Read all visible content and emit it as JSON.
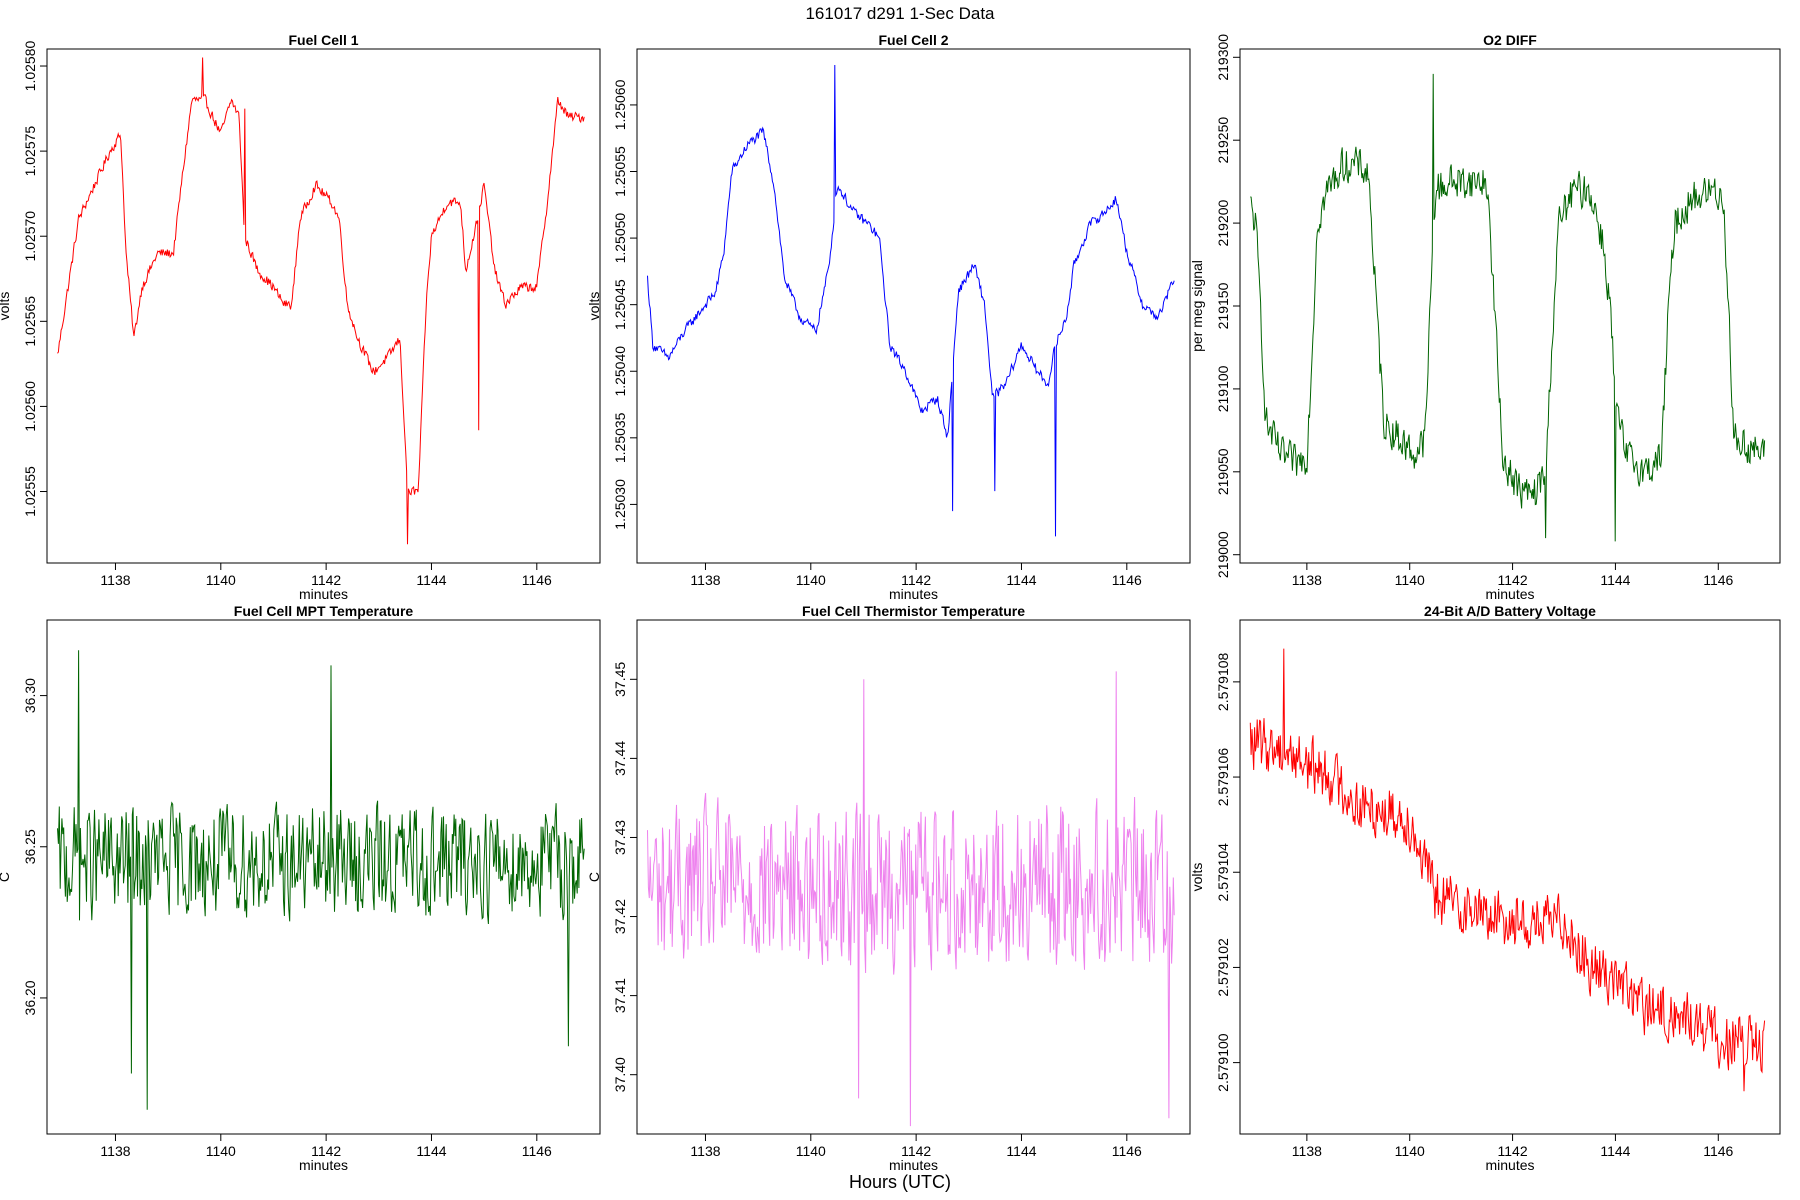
{
  "figure": {
    "title": "161017   d291   1-Sec Data",
    "xlabel_outer": "Hours (UTC)"
  },
  "chart_data": [
    {
      "type": "line",
      "title": "Fuel Cell 1",
      "xlabel": "minutes",
      "ylabel": "volts",
      "color": "#ff0000",
      "xlim": [
        1136.7,
        1147.2
      ],
      "ylim": [
        1.025508,
        1.02581
      ],
      "xticks": [
        1138,
        1140,
        1142,
        1144,
        1146
      ],
      "xtick_labels": [
        "1138",
        "1140",
        "1142",
        "1144",
        "1146"
      ],
      "yticks": [
        1.02555,
        1.0256,
        1.02565,
        1.0257,
        1.02575,
        1.0258
      ],
      "ytick_labels": [
        "1.02555",
        "1.02560",
        "1.02565",
        "1.02570",
        "1.02575",
        "1.02580"
      ],
      "x_range": [
        1136.9,
        1146.9
      ],
      "waypoints": [
        [
          1136.9,
          1.02563
        ],
        [
          1137.1,
          1.02567
        ],
        [
          1137.3,
          1.02571
        ],
        [
          1137.6,
          1.02573
        ],
        [
          1137.9,
          1.02575
        ],
        [
          1138.1,
          1.02576
        ],
        [
          1138.2,
          1.02569
        ],
        [
          1138.35,
          1.02564
        ],
        [
          1138.5,
          1.02567
        ],
        [
          1138.8,
          1.02569
        ],
        [
          1139.1,
          1.02569
        ],
        [
          1139.25,
          1.02573
        ],
        [
          1139.45,
          1.02578
        ],
        [
          1139.7,
          1.02578
        ],
        [
          1140.0,
          1.02576
        ],
        [
          1140.2,
          1.02578
        ],
        [
          1140.35,
          1.02577
        ],
        [
          1140.45,
          1.0257
        ],
        [
          1140.7,
          1.02568
        ],
        [
          1141.0,
          1.02567
        ],
        [
          1141.2,
          1.02566
        ],
        [
          1141.35,
          1.02566
        ],
        [
          1141.5,
          1.02571
        ],
        [
          1141.8,
          1.02573
        ],
        [
          1142.1,
          1.02572
        ],
        [
          1142.25,
          1.02571
        ],
        [
          1142.4,
          1.02566
        ],
        [
          1142.6,
          1.02564
        ],
        [
          1142.9,
          1.02562
        ],
        [
          1143.2,
          1.02563
        ],
        [
          1143.4,
          1.02564
        ],
        [
          1143.55,
          1.02555
        ],
        [
          1143.75,
          1.02555
        ],
        [
          1143.9,
          1.02566
        ],
        [
          1144.0,
          1.0257
        ],
        [
          1144.3,
          1.02572
        ],
        [
          1144.55,
          1.02572
        ],
        [
          1144.65,
          1.02568
        ],
        [
          1144.8,
          1.0257
        ],
        [
          1145.0,
          1.02573
        ],
        [
          1145.2,
          1.02568
        ],
        [
          1145.4,
          1.02566
        ],
        [
          1145.7,
          1.02567
        ],
        [
          1146.0,
          1.02567
        ],
        [
          1146.2,
          1.02572
        ],
        [
          1146.4,
          1.02578
        ],
        [
          1146.6,
          1.02577
        ],
        [
          1146.9,
          1.02577
        ]
      ],
      "noise": 2.8e-06,
      "extremes": [
        [
          1139.65,
          1.025805
        ],
        [
          1143.55,
          1.025519
        ],
        [
          1140.45,
          1.025775
        ],
        [
          1144.9,
          1.025586
        ]
      ]
    },
    {
      "type": "line",
      "title": "Fuel Cell 2",
      "xlabel": "minutes",
      "ylabel": "volts",
      "color": "#0000ff",
      "xlim": [
        1136.7,
        1147.2
      ],
      "ylim": [
        1.250256,
        1.250642
      ],
      "xticks": [
        1138,
        1140,
        1142,
        1144,
        1146
      ],
      "xtick_labels": [
        "1138",
        "1140",
        "1142",
        "1144",
        "1146"
      ],
      "yticks": [
        1.2503,
        1.25035,
        1.2504,
        1.25045,
        1.2505,
        1.25055,
        1.2506
      ],
      "ytick_labels": [
        "1.25030",
        "1.25035",
        "1.25040",
        "1.25045",
        "1.25050",
        "1.25055",
        "1.25060"
      ],
      "x_range": [
        1136.9,
        1146.9
      ],
      "waypoints": [
        [
          1136.9,
          1.25047
        ],
        [
          1137.0,
          1.25042
        ],
        [
          1137.3,
          1.25041
        ],
        [
          1137.6,
          1.25043
        ],
        [
          1138.0,
          1.25045
        ],
        [
          1138.2,
          1.25046
        ],
        [
          1138.35,
          1.25049
        ],
        [
          1138.5,
          1.25055
        ],
        [
          1138.8,
          1.25057
        ],
        [
          1139.1,
          1.25058
        ],
        [
          1139.3,
          1.25054
        ],
        [
          1139.5,
          1.25047
        ],
        [
          1139.8,
          1.25044
        ],
        [
          1140.1,
          1.25043
        ],
        [
          1140.35,
          1.25048
        ],
        [
          1140.5,
          1.25054
        ],
        [
          1140.8,
          1.25052
        ],
        [
          1141.1,
          1.25051
        ],
        [
          1141.3,
          1.2505
        ],
        [
          1141.5,
          1.25042
        ],
        [
          1141.8,
          1.2504
        ],
        [
          1142.1,
          1.25037
        ],
        [
          1142.4,
          1.25038
        ],
        [
          1142.6,
          1.25035
        ],
        [
          1142.8,
          1.25046
        ],
        [
          1143.1,
          1.25048
        ],
        [
          1143.3,
          1.25045
        ],
        [
          1143.45,
          1.25038
        ],
        [
          1143.7,
          1.25039
        ],
        [
          1144.0,
          1.25042
        ],
        [
          1144.3,
          1.2504
        ],
        [
          1144.5,
          1.25039
        ],
        [
          1144.65,
          1.25042
        ],
        [
          1144.85,
          1.25044
        ],
        [
          1145.0,
          1.25048
        ],
        [
          1145.3,
          1.25051
        ],
        [
          1145.6,
          1.25052
        ],
        [
          1145.8,
          1.25053
        ],
        [
          1146.0,
          1.25049
        ],
        [
          1146.3,
          1.25045
        ],
        [
          1146.6,
          1.25044
        ],
        [
          1146.9,
          1.25047
        ]
      ],
      "noise": 3.5e-06,
      "extremes": [
        [
          1140.45,
          1.25063
        ],
        [
          1144.65,
          1.250276
        ],
        [
          1142.7,
          1.250295
        ],
        [
          1143.5,
          1.25031
        ]
      ]
    },
    {
      "type": "line",
      "title": "O2 DIFF",
      "xlabel": "minutes",
      "ylabel": "per meg signal",
      "color": "#006400",
      "xlim": [
        1136.7,
        1147.2
      ],
      "ylim": [
        218995,
        219305
      ],
      "xticks": [
        1138,
        1140,
        1142,
        1144,
        1146
      ],
      "xtick_labels": [
        "1138",
        "1140",
        "1142",
        "1144",
        "1146"
      ],
      "yticks": [
        219000,
        219050,
        219100,
        219150,
        219200,
        219250,
        219300
      ],
      "ytick_labels": [
        "219000",
        "219050",
        "219100",
        "219150",
        "219200",
        "219250",
        "219300"
      ],
      "x_range": [
        1136.9,
        1146.9
      ],
      "waypoints": [
        [
          1136.9,
          219210
        ],
        [
          1137.0,
          219200
        ],
        [
          1137.1,
          219150
        ],
        [
          1137.2,
          219080
        ],
        [
          1137.5,
          219060
        ],
        [
          1137.8,
          219055
        ],
        [
          1138.0,
          219060
        ],
        [
          1138.1,
          219120
        ],
        [
          1138.2,
          219200
        ],
        [
          1138.4,
          219220
        ],
        [
          1138.7,
          219235
        ],
        [
          1139.0,
          219235
        ],
        [
          1139.2,
          219230
        ],
        [
          1139.35,
          219150
        ],
        [
          1139.5,
          219080
        ],
        [
          1139.8,
          219070
        ],
        [
          1140.1,
          219060
        ],
        [
          1140.3,
          219070
        ],
        [
          1140.4,
          219150
        ],
        [
          1140.5,
          219220
        ],
        [
          1140.8,
          219225
        ],
        [
          1141.2,
          219225
        ],
        [
          1141.5,
          219225
        ],
        [
          1141.65,
          219150
        ],
        [
          1141.8,
          219060
        ],
        [
          1142.1,
          219040
        ],
        [
          1142.4,
          219035
        ],
        [
          1142.65,
          219050
        ],
        [
          1142.75,
          219120
        ],
        [
          1142.9,
          219200
        ],
        [
          1143.2,
          219220
        ],
        [
          1143.5,
          219220
        ],
        [
          1143.75,
          219190
        ],
        [
          1143.9,
          219150
        ],
        [
          1144.0,
          219090
        ],
        [
          1144.2,
          219060
        ],
        [
          1144.6,
          219050
        ],
        [
          1144.9,
          219060
        ],
        [
          1145.0,
          219130
        ],
        [
          1145.15,
          219200
        ],
        [
          1145.5,
          219215
        ],
        [
          1145.9,
          219220
        ],
        [
          1146.1,
          219215
        ],
        [
          1146.2,
          219150
        ],
        [
          1146.3,
          219070
        ],
        [
          1146.6,
          219065
        ],
        [
          1146.9,
          219060
        ]
      ],
      "noise": 10,
      "extremes": [
        [
          1140.45,
          219290
        ],
        [
          1144.0,
          219008
        ],
        [
          1142.65,
          219010
        ]
      ]
    },
    {
      "type": "line",
      "title": "Fuel Cell MPT Temperature",
      "xlabel": "minutes",
      "ylabel": "C",
      "color": "#006400",
      "xlim": [
        1136.7,
        1147.2
      ],
      "ylim": [
        36.155,
        36.325
      ],
      "xticks": [
        1138,
        1140,
        1142,
        1144,
        1146
      ],
      "xtick_labels": [
        "1138",
        "1140",
        "1142",
        "1144",
        "1146"
      ],
      "yticks": [
        36.2,
        36.25,
        36.3
      ],
      "ytick_labels": [
        "36.20",
        "36.25",
        "36.30"
      ],
      "x_range": [
        1136.9,
        1146.9
      ],
      "waypoints": [
        [
          1136.9,
          36.245
        ],
        [
          1146.9,
          36.245
        ]
      ],
      "noise": 0.017,
      "extremes": [
        [
          1137.3,
          36.315
        ],
        [
          1138.6,
          36.163
        ],
        [
          1142.1,
          36.31
        ],
        [
          1146.6,
          36.184
        ],
        [
          1138.3,
          36.175
        ]
      ]
    },
    {
      "type": "line",
      "title": "Fuel Cell Thermistor Temperature",
      "xlabel": "minutes",
      "ylabel": "C",
      "color": "#ee82ee",
      "xlim": [
        1136.7,
        1147.2
      ],
      "ylim": [
        37.3925,
        37.4575
      ],
      "xticks": [
        1138,
        1140,
        1142,
        1144,
        1146
      ],
      "xtick_labels": [
        "1138",
        "1140",
        "1142",
        "1144",
        "1146"
      ],
      "yticks": [
        37.4,
        37.41,
        37.42,
        37.43,
        37.44,
        37.45
      ],
      "ytick_labels": [
        "37.40",
        "37.41",
        "37.42",
        "37.43",
        "37.44",
        "37.45"
      ],
      "x_range": [
        1136.9,
        1146.9
      ],
      "waypoints": [
        [
          1136.9,
          37.424
        ],
        [
          1146.9,
          37.424
        ]
      ],
      "noise": 0.0095,
      "extremes": [
        [
          1141.0,
          37.45
        ],
        [
          1145.8,
          37.451
        ],
        [
          1141.9,
          37.3935
        ],
        [
          1146.8,
          37.3945
        ],
        [
          1140.9,
          37.397
        ]
      ]
    },
    {
      "type": "line",
      "title": "24-Bit A/D Battery Voltage",
      "xlabel": "minutes",
      "ylabel": "volts",
      "color": "#ff0000",
      "xlim": [
        1136.7,
        1147.2
      ],
      "ylim": [
        2.5790985,
        2.5791093
      ],
      "xticks": [
        1138,
        1140,
        1142,
        1144,
        1146
      ],
      "xtick_labels": [
        "1138",
        "1140",
        "1142",
        "1144",
        "1146"
      ],
      "yticks": [
        2.5791,
        2.579102,
        2.579104,
        2.579106,
        2.579108
      ],
      "ytick_labels": [
        "2.579100",
        "2.579102",
        "2.579104",
        "2.579106",
        "2.579108"
      ],
      "x_range": [
        1136.9,
        1146.9
      ],
      "waypoints": [
        [
          1136.9,
          2.5791067
        ],
        [
          1137.5,
          2.5791066
        ],
        [
          1138.0,
          2.5791063
        ],
        [
          1138.5,
          2.579106
        ],
        [
          1139.0,
          2.5791054
        ],
        [
          1139.5,
          2.5791053
        ],
        [
          1140.0,
          2.5791051
        ],
        [
          1140.5,
          2.5791035
        ],
        [
          1141.0,
          2.5791033
        ],
        [
          1141.5,
          2.5791031
        ],
        [
          1142.0,
          2.579103
        ],
        [
          1142.5,
          2.5791029
        ],
        [
          1143.0,
          2.579103
        ],
        [
          1143.5,
          2.579102
        ],
        [
          1144.0,
          2.5791018
        ],
        [
          1144.5,
          2.5791012
        ],
        [
          1145.0,
          2.579101
        ],
        [
          1145.5,
          2.5791009
        ],
        [
          1146.0,
          2.5791005
        ],
        [
          1146.9,
          2.5791003
        ]
      ],
      "noise": 5.5e-07,
      "extremes": [
        [
          1137.55,
          2.5791087
        ],
        [
          1146.5,
          2.5790994
        ]
      ]
    }
  ]
}
